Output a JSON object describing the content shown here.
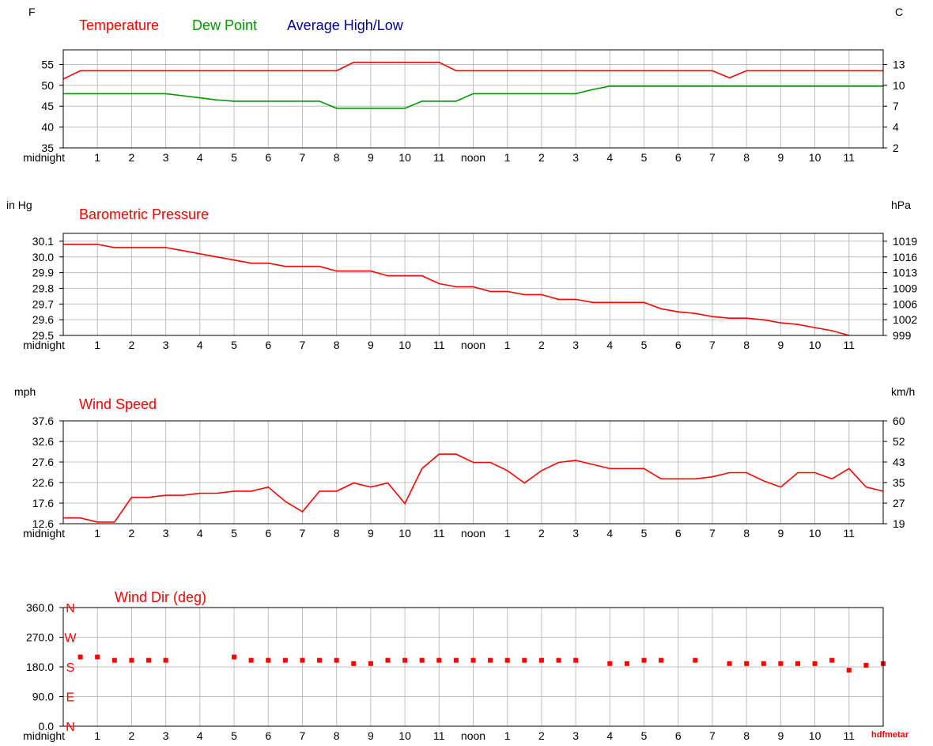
{
  "colors": {
    "temperature": "#ff0000",
    "dew_point": "#009900",
    "average_high_low": "#000099",
    "pressure": "#ff0000",
    "wind_speed": "#ff0000",
    "wind_dir": "#ff0000",
    "grid": "#c0c0c0"
  },
  "watermark": "hdfmetar",
  "x_tick_labels": [
    "midnight",
    "1",
    "2",
    "3",
    "4",
    "5",
    "6",
    "7",
    "8",
    "9",
    "10",
    "11",
    "noon",
    "1",
    "2",
    "3",
    "4",
    "5",
    "6",
    "7",
    "8",
    "9",
    "10",
    "11"
  ],
  "chart_data": [
    {
      "type": "line",
      "legend_placement": "top",
      "grid": true,
      "xlabel": "",
      "ylabel_left": "F",
      "ylabel_right": "C",
      "x_unit": "hour of day",
      "xlim": [
        0,
        24
      ],
      "ylim": [
        35,
        58.5
      ],
      "y_ticks": [
        "35",
        "40",
        "45",
        "50",
        "55"
      ],
      "y_ticks_right": [
        "2",
        "4",
        "7",
        "10",
        "13"
      ],
      "series": [
        {
          "name": "Temperature",
          "x": [
            0,
            0.5,
            8,
            8.5,
            11,
            11.5,
            19,
            19.5,
            20,
            24
          ],
          "values": [
            51.5,
            53.5,
            53.5,
            55.5,
            55.5,
            53.5,
            53.5,
            51.8,
            53.5,
            53.5
          ]
        },
        {
          "name": "Dew Point",
          "x": [
            0,
            3,
            3.5,
            4,
            4.5,
            5,
            7.5,
            8,
            8.5,
            10,
            10.5,
            11.5,
            12,
            15,
            15.5,
            16,
            24
          ],
          "values": [
            48,
            48,
            47.5,
            47,
            46.5,
            46.2,
            46.2,
            44.5,
            44.5,
            44.5,
            46.2,
            46.2,
            48,
            48,
            49,
            49.8,
            49.8
          ]
        },
        {
          "name": "Average High/Low",
          "x": [],
          "values": []
        }
      ]
    },
    {
      "type": "line",
      "title": "Barometric Pressure",
      "grid": true,
      "xlabel": "",
      "ylabel_left": "in Hg",
      "ylabel_right": "hPa",
      "x_unit": "hour of day",
      "xlim": [
        0,
        24
      ],
      "ylim": [
        29.5,
        30.15
      ],
      "y_ticks": [
        "29.5",
        "29.6",
        "29.7",
        "29.8",
        "29.9",
        "30.0",
        "30.1"
      ],
      "y_ticks_right": [
        "999",
        "1002",
        "1006",
        "1009",
        "1013",
        "1016",
        "1019"
      ],
      "series": [
        {
          "name": "Barometric Pressure",
          "x": [
            0,
            1,
            1.5,
            3,
            3.5,
            4,
            4.5,
            5,
            5.5,
            6,
            6.5,
            7.5,
            8,
            9,
            9.5,
            10.5,
            11,
            11.5,
            12,
            12.5,
            13,
            13.5,
            14,
            14.5,
            15,
            15.5,
            16,
            17,
            17.5,
            18,
            18.5,
            19,
            19.5,
            20,
            20.5,
            21,
            21.5,
            22,
            22.5,
            23
          ],
          "values": [
            30.08,
            30.08,
            30.06,
            30.06,
            30.04,
            30.02,
            30.0,
            29.98,
            29.96,
            29.96,
            29.94,
            29.94,
            29.91,
            29.91,
            29.88,
            29.88,
            29.83,
            29.81,
            29.81,
            29.78,
            29.78,
            29.76,
            29.76,
            29.73,
            29.73,
            29.71,
            29.71,
            29.71,
            29.67,
            29.65,
            29.64,
            29.62,
            29.61,
            29.61,
            29.6,
            29.58,
            29.57,
            29.55,
            29.53,
            29.5
          ]
        }
      ]
    },
    {
      "type": "line",
      "title": "Wind Speed",
      "grid": true,
      "xlabel": "",
      "ylabel_left": "mph",
      "ylabel_right": "km/h",
      "x_unit": "hour of day",
      "xlim": [
        0,
        24
      ],
      "ylim": [
        12.6,
        37.6
      ],
      "y_ticks": [
        "12.6",
        "17.6",
        "22.6",
        "27.6",
        "32.6",
        "37.6"
      ],
      "y_ticks_right": [
        "19",
        "27",
        "35",
        "43",
        "52",
        "60"
      ],
      "series": [
        {
          "name": "Wind Speed",
          "x": [
            0,
            0.5,
            1,
            1.5,
            2,
            2.5,
            3,
            3.5,
            4,
            4.5,
            5,
            5.5,
            6,
            6.5,
            7,
            7.5,
            8,
            8.5,
            9,
            9.5,
            10,
            10.5,
            11,
            11.5,
            12,
            12.5,
            13,
            13.5,
            14,
            14.5,
            15,
            15.5,
            16,
            16.5,
            17,
            17.5,
            18,
            18.5,
            19,
            19.5,
            20,
            20.5,
            21,
            21.5,
            22,
            22.5,
            23,
            23.5,
            24
          ],
          "values": [
            14,
            14,
            13,
            13,
            19,
            19,
            19.5,
            19.5,
            20,
            20,
            20.5,
            20.5,
            21.5,
            18,
            15.5,
            20.5,
            20.5,
            22.5,
            21.5,
            22.5,
            17.5,
            26,
            29.5,
            29.5,
            27.5,
            27.5,
            25.5,
            22.5,
            25.5,
            27.5,
            28,
            27,
            26,
            26,
            26,
            23.5,
            23.5,
            23.5,
            24,
            25,
            25,
            23,
            21.5,
            25,
            25,
            23.5,
            26,
            21.5,
            20.5
          ]
        }
      ]
    },
    {
      "type": "scatter",
      "title": "Wind Dir (deg)",
      "grid": true,
      "xlabel": "",
      "ylabel": "",
      "x_unit": "hour of day",
      "xlim": [
        0,
        24
      ],
      "ylim": [
        0,
        360
      ],
      "y_ticks": [
        "0.0",
        "90.0",
        "180.0",
        "270.0",
        "360.0"
      ],
      "compass_labels": [
        {
          "label": "N",
          "value": 360
        },
        {
          "label": "W",
          "value": 270
        },
        {
          "label": "S",
          "value": 180
        },
        {
          "label": "E",
          "value": 90
        },
        {
          "label": "N",
          "value": 0
        }
      ],
      "series": [
        {
          "name": "Wind Dir (deg)",
          "x": [
            0.5,
            1,
            1.5,
            2,
            2.5,
            3,
            5,
            5.5,
            6,
            6.5,
            7,
            7.5,
            8,
            8.5,
            9,
            9.5,
            10,
            10.5,
            11,
            11.5,
            12,
            12.5,
            13,
            13.5,
            14,
            14.5,
            15,
            16,
            16.5,
            17,
            17.5,
            18.5,
            19.5,
            20,
            20.5,
            21,
            21.5,
            22,
            22.5,
            23,
            23.5,
            24
          ],
          "values": [
            210,
            210,
            200,
            200,
            200,
            200,
            210,
            200,
            200,
            200,
            200,
            200,
            200,
            190,
            190,
            200,
            200,
            200,
            200,
            200,
            200,
            200,
            200,
            200,
            200,
            200,
            200,
            190,
            190,
            200,
            200,
            200,
            190,
            190,
            190,
            190,
            190,
            190,
            200,
            170,
            185,
            190
          ]
        }
      ]
    }
  ]
}
